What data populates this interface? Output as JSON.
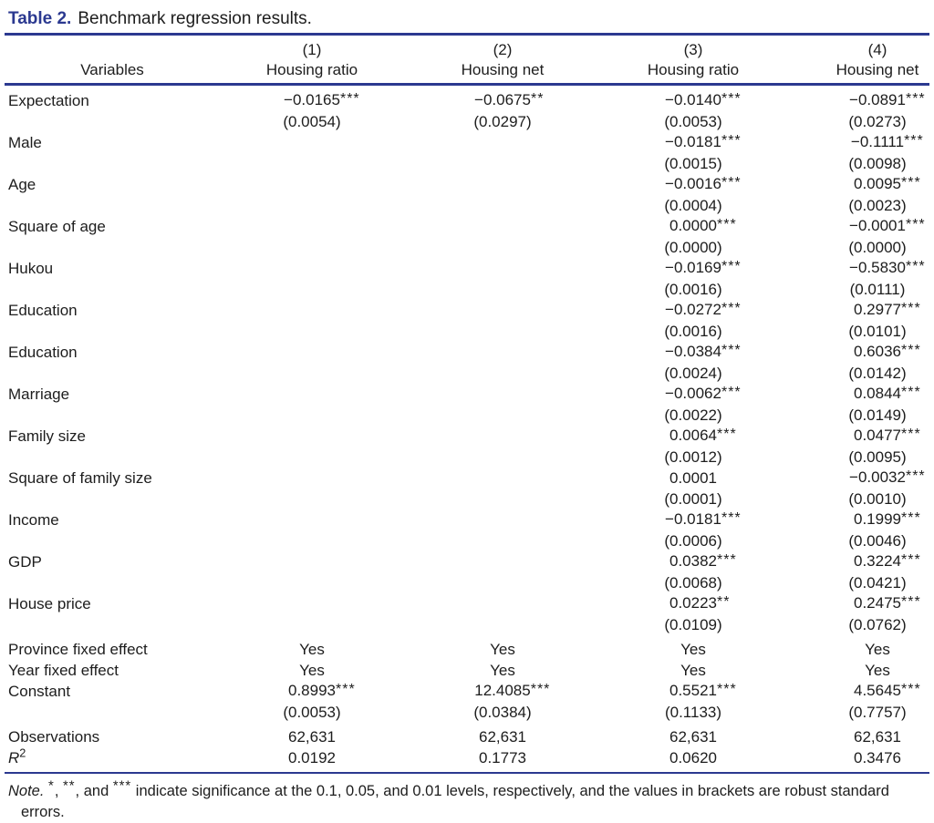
{
  "title": {
    "label": "Table 2.",
    "text": "Benchmark regression results."
  },
  "colors": {
    "accent_navy": "#2b3990",
    "text": "#1d1d1d"
  },
  "table": {
    "variables_header": "Variables",
    "columns": [
      {
        "num": "(1)",
        "label": "Housing ratio"
      },
      {
        "num": "(2)",
        "label": "Housing net"
      },
      {
        "num": "(3)",
        "label": "Housing ratio"
      },
      {
        "num": "(4)",
        "label": "Housing net"
      }
    ],
    "rows": [
      {
        "type": "pair",
        "label": "Expectation",
        "cells": [
          {
            "v": "−0.0165",
            "s": "***",
            "se": "(0.0054)"
          },
          {
            "v": "−0.0675",
            "s": "**",
            "se": "(0.0297)"
          },
          {
            "v": "−0.0140",
            "s": "***",
            "se": "(0.0053)"
          },
          {
            "v": "−0.0891",
            "s": "***",
            "se": "(0.0273)"
          }
        ]
      },
      {
        "type": "pair",
        "label": "Male",
        "cells": [
          null,
          null,
          {
            "v": "−0.0181",
            "s": "***",
            "se": "(0.0015)"
          },
          {
            "v": "−0.1111",
            "s": "***",
            "se": "(0.0098)"
          }
        ]
      },
      {
        "type": "pair",
        "label": "Age",
        "cells": [
          null,
          null,
          {
            "v": "−0.0016",
            "s": "***",
            "se": "(0.0004)"
          },
          {
            "v": "0.0095",
            "s": "***",
            "se": "(0.0023)"
          }
        ]
      },
      {
        "type": "pair",
        "label": "Square of age",
        "cells": [
          null,
          null,
          {
            "v": "0.0000",
            "s": "***",
            "se": "(0.0000)"
          },
          {
            "v": "−0.0001",
            "s": "***",
            "se": "(0.0000)"
          }
        ]
      },
      {
        "type": "pair",
        "label": "Hukou",
        "cells": [
          null,
          null,
          {
            "v": "−0.0169",
            "s": "***",
            "se": "(0.0016)"
          },
          {
            "v": "−0.5830",
            "s": "***",
            "se": "(0.0111)"
          }
        ]
      },
      {
        "type": "pair",
        "label": "Education",
        "cells": [
          null,
          null,
          {
            "v": "−0.0272",
            "s": "***",
            "se": "(0.0016)"
          },
          {
            "v": "0.2977",
            "s": "***",
            "se": "(0.0101)"
          }
        ]
      },
      {
        "type": "pair",
        "label": "Education",
        "cells": [
          null,
          null,
          {
            "v": "−0.0384",
            "s": "***",
            "se": "(0.0024)"
          },
          {
            "v": "0.6036",
            "s": "***",
            "se": "(0.0142)"
          }
        ]
      },
      {
        "type": "pair",
        "label": "Marriage",
        "cells": [
          null,
          null,
          {
            "v": "−0.0062",
            "s": "***",
            "se": "(0.0022)"
          },
          {
            "v": "0.0844",
            "s": "***",
            "se": "(0.0149)"
          }
        ]
      },
      {
        "type": "pair",
        "label": "Family size",
        "cells": [
          null,
          null,
          {
            "v": "0.0064",
            "s": "***",
            "se": "(0.0012)"
          },
          {
            "v": "0.0477",
            "s": "***",
            "se": "(0.0095)"
          }
        ]
      },
      {
        "type": "pair",
        "label": "Square of family size",
        "cells": [
          null,
          null,
          {
            "v": "0.0001",
            "s": "",
            "se": "(0.0001)"
          },
          {
            "v": "−0.0032",
            "s": "***",
            "se": "(0.0010)"
          }
        ]
      },
      {
        "type": "pair",
        "label": "Income",
        "cells": [
          null,
          null,
          {
            "v": "−0.0181",
            "s": "***",
            "se": "(0.0006)"
          },
          {
            "v": "0.1999",
            "s": "***",
            "se": "(0.0046)"
          }
        ]
      },
      {
        "type": "pair",
        "label": "GDP",
        "cells": [
          null,
          null,
          {
            "v": "0.0382",
            "s": "***",
            "se": "(0.0068)"
          },
          {
            "v": "0.3224",
            "s": "***",
            "se": "(0.0421)"
          }
        ]
      },
      {
        "type": "pair",
        "label": "House price",
        "cells": [
          null,
          null,
          {
            "v": "0.0223",
            "s": "**",
            "se": "(0.0109)"
          },
          {
            "v": "0.2475",
            "s": "***",
            "se": "(0.0762)"
          }
        ]
      },
      {
        "type": "single",
        "label": "Province fixed effect",
        "gap_before": true,
        "values": [
          "Yes",
          "Yes",
          "Yes",
          "Yes"
        ]
      },
      {
        "type": "single",
        "label": "Year fixed effect",
        "values": [
          "Yes",
          "Yes",
          "Yes",
          "Yes"
        ]
      },
      {
        "type": "pair",
        "label": "Constant",
        "cells": [
          {
            "v": "0.8993",
            "s": "***",
            "se": "(0.0053)"
          },
          {
            "v": "12.4085",
            "s": "***",
            "se": "(0.0384)"
          },
          {
            "v": "0.5521",
            "s": "***",
            "se": "(0.1133)"
          },
          {
            "v": "4.5645",
            "s": "***",
            "se": "(0.7757)"
          }
        ]
      },
      {
        "type": "single",
        "label": "Observations",
        "gap_before": true,
        "values": [
          "62,631",
          "62,631",
          "62,631",
          "62,631"
        ]
      },
      {
        "type": "single",
        "label": "R",
        "label_sup": "2",
        "italic_label": true,
        "values": [
          "0.0192",
          "0.1773",
          "0.0620",
          "0.3476"
        ]
      }
    ]
  },
  "note": {
    "parts": [
      {
        "t": "Note.",
        "i": true
      },
      {
        "t": " "
      },
      {
        "t": "*",
        "sup": true
      },
      {
        "t": ", "
      },
      {
        "t": "**",
        "sup": true
      },
      {
        "t": ", and "
      },
      {
        "t": "***",
        "sup": true
      },
      {
        "t": " indicate significance at the 0.1, 0.05, and 0.01 levels, respectively, and the values in brackets are robust standard errors."
      }
    ]
  }
}
